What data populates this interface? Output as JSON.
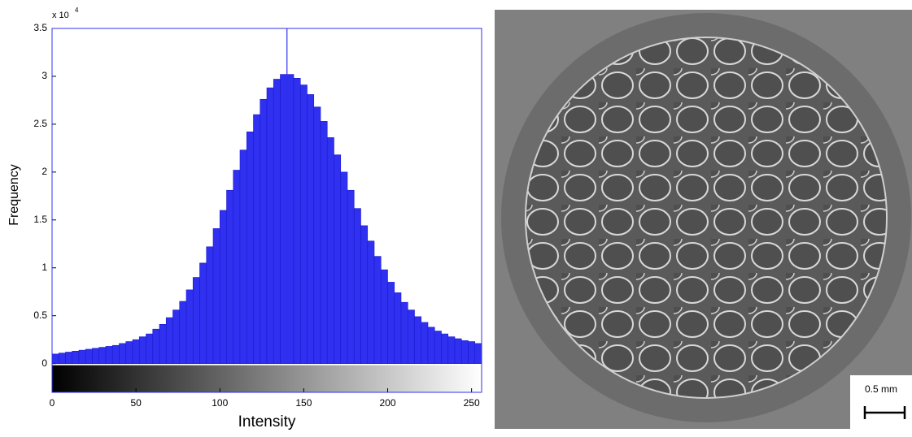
{
  "chart_data": {
    "type": "histogram",
    "xlabel": "Intensity",
    "ylabel": "Frequency",
    "y_multiplier": "x 10",
    "y_multiplier_exp": "4",
    "bins": [
      0,
      4,
      8,
      12,
      16,
      20,
      24,
      28,
      32,
      36,
      40,
      44,
      48,
      52,
      56,
      60,
      64,
      68,
      72,
      76,
      80,
      84,
      88,
      92,
      96,
      100,
      104,
      108,
      112,
      116,
      120,
      124,
      128,
      132,
      136,
      140,
      144,
      148,
      152,
      156,
      160,
      164,
      168,
      172,
      176,
      180,
      184,
      188,
      192,
      196,
      200,
      204,
      208,
      212,
      216,
      220,
      224,
      228,
      232,
      236,
      240,
      244,
      248,
      252,
      256
    ],
    "values": [
      0.1,
      0.11,
      0.12,
      0.13,
      0.14,
      0.15,
      0.16,
      0.17,
      0.18,
      0.19,
      0.21,
      0.23,
      0.25,
      0.28,
      0.31,
      0.36,
      0.41,
      0.48,
      0.56,
      0.65,
      0.77,
      0.9,
      1.05,
      1.22,
      1.41,
      1.6,
      1.81,
      2.02,
      2.23,
      2.42,
      2.6,
      2.76,
      2.88,
      2.97,
      3.02,
      3.02,
      2.98,
      2.91,
      2.81,
      2.68,
      2.53,
      2.36,
      2.18,
      2.0,
      1.81,
      1.62,
      1.44,
      1.28,
      1.12,
      0.98,
      0.85,
      0.74,
      0.64,
      0.56,
      0.49,
      0.43,
      0.38,
      0.34,
      0.31,
      0.28,
      0.26,
      0.24,
      0.23,
      0.21
    ],
    "color": "#3030f0",
    "vline_x": 140,
    "xlim": [
      0,
      256
    ],
    "xticks": [
      0,
      50,
      100,
      150,
      200,
      250
    ],
    "ylim": [
      -0.3,
      3.5
    ],
    "yticks": [
      0,
      0.5,
      1,
      1.5,
      2,
      2.5,
      3,
      3.5
    ],
    "colorbar": true
  },
  "image": {
    "scale_bar_label": "0.5 mm"
  }
}
